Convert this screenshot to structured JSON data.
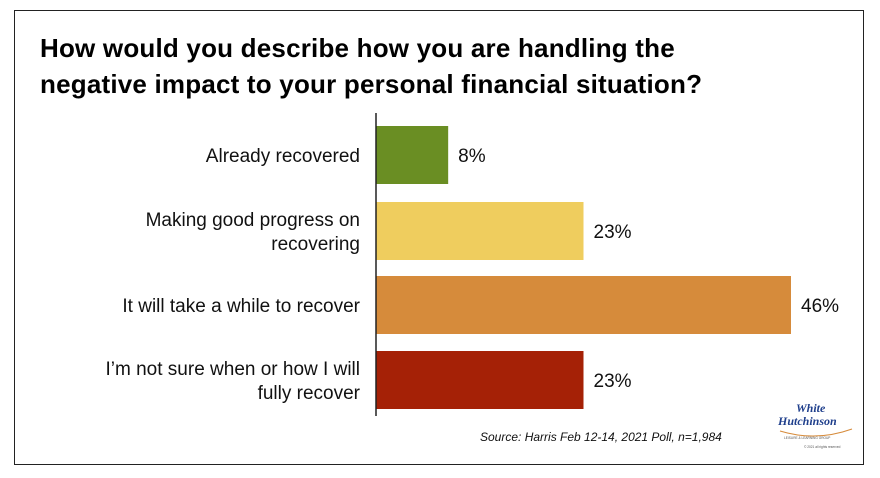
{
  "chart_data": {
    "type": "bar",
    "orientation": "horizontal",
    "title_lines": [
      "How would you describe how you are handling the",
      "negative impact to your personal financial situation?"
    ],
    "categories": [
      [
        "Already recovered"
      ],
      [
        "Making good progress on",
        "recovering"
      ],
      [
        "It will take a while to recover"
      ],
      [
        "I’m not sure when or how I will",
        "fully recover"
      ]
    ],
    "values": [
      8,
      23,
      46,
      23
    ],
    "value_labels": [
      "8%",
      "23%",
      "46%",
      "23%"
    ],
    "colors": [
      "#6a8e23",
      "#efcd5e",
      "#d68b3b",
      "#a52106"
    ],
    "xlim": [
      0,
      46
    ],
    "grid": false,
    "legend": "none"
  },
  "source": "Source: Harris Feb 12-14, 2021 Poll, n=1,984",
  "logo": {
    "line1": "White",
    "line2": "Hutchinson",
    "tagline": "LEISURE & LEARNING GROUP",
    "copyright": "© 2021 all rights reserved"
  }
}
